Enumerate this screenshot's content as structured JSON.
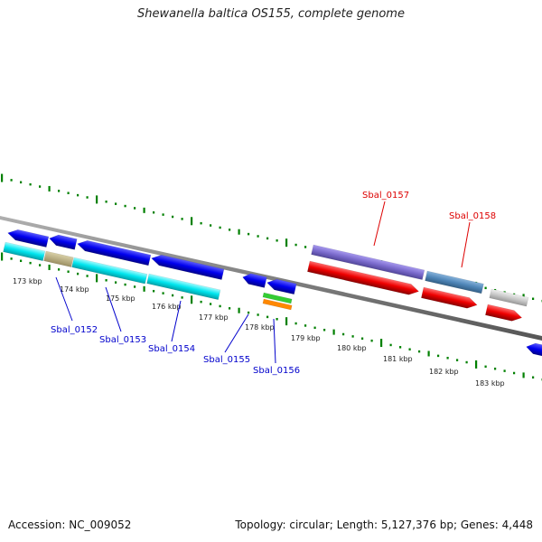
{
  "title": "Shewanella baltica OS155, complete genome",
  "footer": {
    "accession": "Accession: NC_009052",
    "summary": "Topology: circular; Length: 5,127,376 bp; Genes: 4,448"
  },
  "kbp_labels": [
    "173 kbp",
    "174 kbp",
    "175 kbp",
    "176 kbp",
    "177 kbp",
    "178 kbp",
    "179 kbp",
    "180 kbp",
    "181 kbp",
    "182 kbp",
    "183 kbp"
  ],
  "gene_labels": [
    {
      "id": "Sbal_0152",
      "color": "#0000cc"
    },
    {
      "id": "Sbal_0153",
      "color": "#0000cc"
    },
    {
      "id": "Sbal_0154",
      "color": "#0000cc"
    },
    {
      "id": "Sbal_0155",
      "color": "#0000cc"
    },
    {
      "id": "Sbal_0156",
      "color": "#0000cc"
    },
    {
      "id": "Sbal_0157",
      "color": "#dd0000"
    },
    {
      "id": "Sbal_0158",
      "color": "#dd0000"
    }
  ],
  "colors": {
    "backbone": "#808080",
    "tick": "#008000",
    "forward_cds": "#0000ee",
    "reverse_cds": "#ee0000",
    "cyan_feature": "#00e5ee",
    "tan_feature": "#b4a878",
    "purple_feature": "#7a6acc",
    "steelblue_feature": "#4f86b8",
    "gray_feature": "#c8c8c8",
    "green_feature": "#33cc33",
    "orange_feature": "#ff8800"
  }
}
